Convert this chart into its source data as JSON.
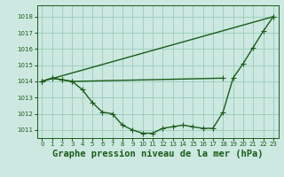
{
  "title": "Graphe pression niveau de la mer (hPa)",
  "bg_color": "#cce8e0",
  "grid_color": "#99ccbb",
  "line_color": "#1a5c1a",
  "xlim": [
    -0.5,
    23.5
  ],
  "ylim": [
    1010.5,
    1018.7
  ],
  "yticks": [
    1011,
    1012,
    1013,
    1014,
    1015,
    1016,
    1017,
    1018
  ],
  "xticks": [
    0,
    1,
    2,
    3,
    4,
    5,
    6,
    7,
    8,
    9,
    10,
    11,
    12,
    13,
    14,
    15,
    16,
    17,
    18,
    19,
    20,
    21,
    22,
    23
  ],
  "series_diagonal": {
    "x": [
      0,
      23
    ],
    "y": [
      1014.0,
      1018.0
    ]
  },
  "series_flat": {
    "x": [
      0,
      1,
      2,
      3,
      18
    ],
    "y": [
      1014.0,
      1014.2,
      1014.1,
      1014.0,
      1014.2
    ]
  },
  "series_curve": {
    "x": [
      0,
      1,
      2,
      3,
      4,
      5,
      6,
      7,
      8,
      9,
      10,
      11,
      12,
      13,
      14,
      15,
      16,
      17,
      18,
      19,
      20,
      21,
      22,
      23
    ],
    "y": [
      1014.0,
      1014.2,
      1014.1,
      1014.0,
      1013.5,
      1012.7,
      1012.1,
      1012.0,
      1011.3,
      1011.0,
      1010.8,
      1010.8,
      1011.1,
      1011.2,
      1011.3,
      1011.2,
      1011.1,
      1011.1,
      1012.1,
      1014.2,
      1015.1,
      1016.1,
      1017.1,
      1018.0
    ]
  },
  "marker": "+",
  "marker_size": 4,
  "line_width": 1.0,
  "title_fontsize": 7.5,
  "tick_fontsize": 5.0
}
